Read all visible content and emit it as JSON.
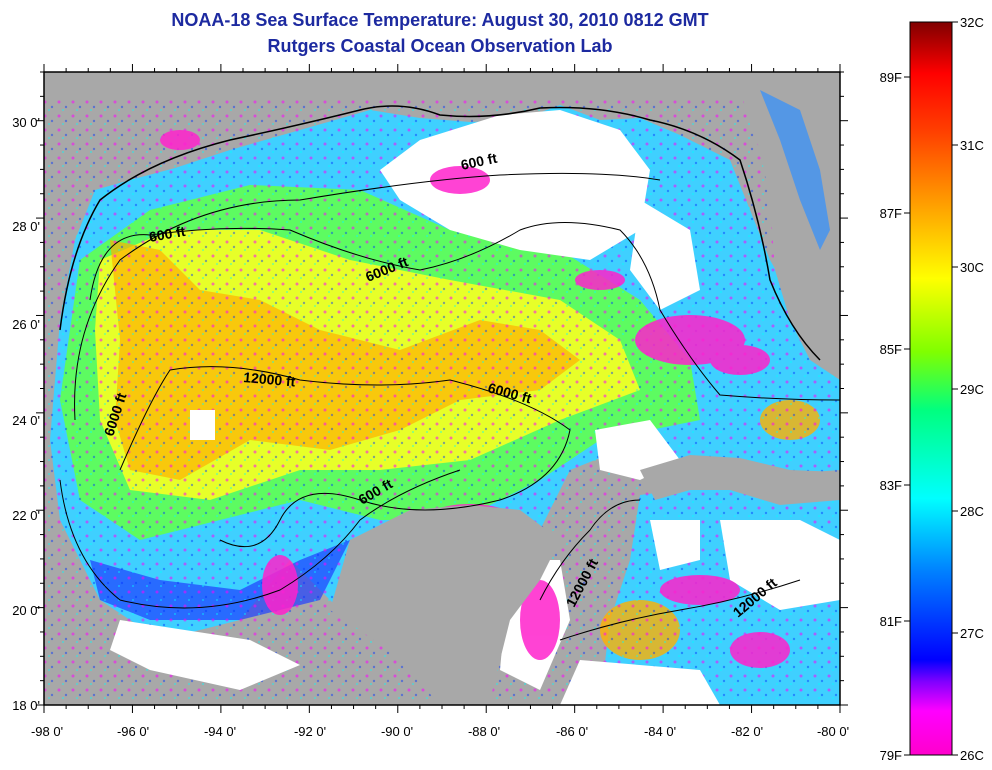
{
  "header": {
    "title": "NOAA-18 Sea Surface Temperature:  August 30, 2010 0812 GMT",
    "subtitle": "Rutgers Coastal Ocean Observation Lab"
  },
  "map": {
    "lat_ticks": [
      "18 0'",
      "20 0'",
      "22 0'",
      "24 0'",
      "26 0'",
      "28 0'",
      "30 0'"
    ],
    "lon_ticks": [
      "-98 0'",
      "-96 0'",
      "-94 0'",
      "-92 0'",
      "-90 0'",
      "-88 0'",
      "-86 0'",
      "-84 0'",
      "-82 0'",
      "-80 0'"
    ],
    "lat_range": [
      18,
      31
    ],
    "lon_range": [
      -98,
      -80
    ],
    "land_color": "#a8a8a8",
    "cloud_color": "#ffffff",
    "contour_labels": [
      "600 ft",
      "600 ft",
      "6000 ft",
      "12000 ft",
      "6000 ft",
      "6000 ft",
      "600 ft",
      "12000 ft",
      "12000 ft"
    ]
  },
  "colorbar": {
    "celsius_labels": [
      "32C",
      "31C",
      "30C",
      "29C",
      "28C",
      "27C",
      "26C"
    ],
    "fahrenheit_labels": [
      "89F",
      "87F",
      "85F",
      "83F",
      "81F",
      "79F"
    ],
    "colors": [
      "#8b0000",
      "#ff0000",
      "#ff8000",
      "#ffff00",
      "#00ff00",
      "#00ffff",
      "#0000ff",
      "#ff00ff"
    ]
  }
}
